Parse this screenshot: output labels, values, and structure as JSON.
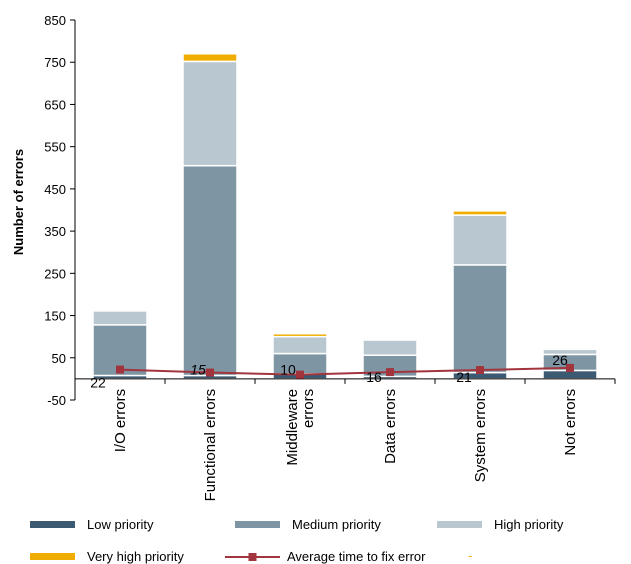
{
  "chart_data": {
    "type": "bar",
    "stacked": true,
    "title": "",
    "xlabel": "",
    "ylabel": "Number of errors",
    "ylim": [
      -50,
      850
    ],
    "yticks": [
      -50,
      50,
      150,
      250,
      350,
      450,
      550,
      650,
      750,
      850
    ],
    "grid": false,
    "legend_position": "bottom",
    "categories": [
      "I/O errors",
      "Functional errors",
      "Middleware errors",
      "Data errors",
      "System errors",
      "Not errors"
    ],
    "series": [
      {
        "name": "Low priority",
        "color": "#3d5a73",
        "values": [
          8,
          8,
          12,
          6,
          15,
          20
        ]
      },
      {
        "name": "Medium priority",
        "color": "#7e95a4",
        "values": [
          120,
          497,
          48,
          50,
          255,
          38
        ]
      },
      {
        "name": "High priority",
        "color": "#b9c7d0",
        "values": [
          33,
          247,
          40,
          36,
          118,
          12
        ]
      },
      {
        "name": "Very high priority",
        "color": "#f0ad00",
        "values": [
          0,
          18,
          7,
          0,
          10,
          0
        ]
      }
    ],
    "line_series": {
      "name": "Average time to fix error",
      "color": "#a1343c",
      "values": [
        22,
        15,
        10,
        16,
        21,
        26
      ],
      "labels": [
        "22",
        "15",
        "10",
        "16",
        "21",
        "26"
      ]
    },
    "legend_extra": "-"
  }
}
